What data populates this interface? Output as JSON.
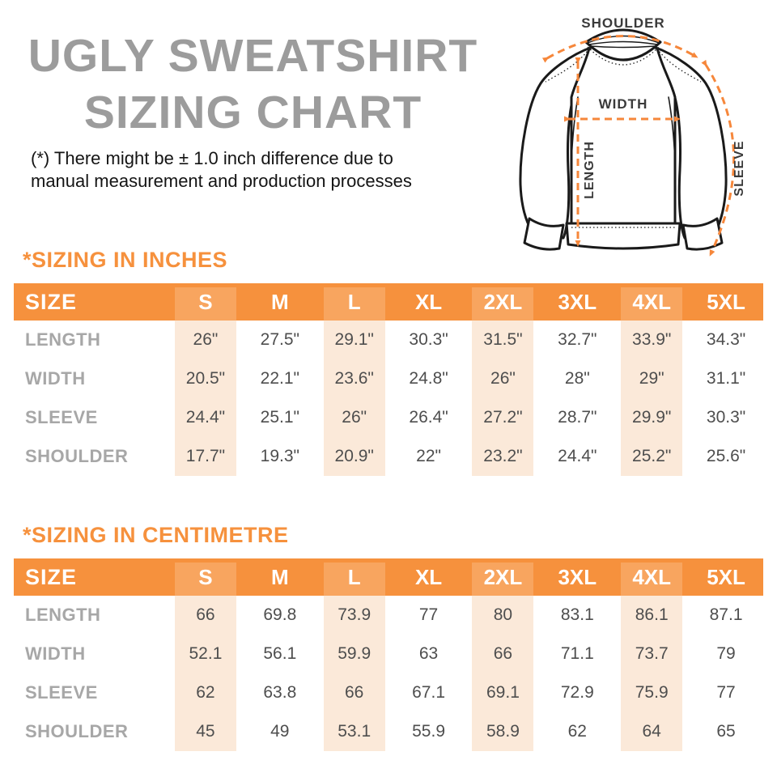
{
  "title": {
    "line1": "UGLY SWEATSHIRT",
    "line2": "SIZING CHART"
  },
  "disclaimer": {
    "line1": "(*) There might be ± 1.0 inch difference due to",
    "line2": "manual measurement and production processes"
  },
  "diagram": {
    "shoulder_label": "SHOULDER",
    "width_label": "WIDTH",
    "length_label": "LENGTH",
    "sleeve_label": "SLEEVE"
  },
  "colors": {
    "accent_orange": "#F6913D",
    "header_highlight_orange": "#F8A55F",
    "column_stripe_peach": "#FBE9D9",
    "title_gray": "#9C9C9C",
    "row_label_gray": "#A7A7A7",
    "value_gray": "#4E4E4E",
    "arrow_orange": "#F6873B"
  },
  "tables": [
    {
      "heading": "*SIZING IN INCHES",
      "size_label": "SIZE",
      "columns": [
        "S",
        "M",
        "L",
        "XL",
        "2XL",
        "3XL",
        "4XL",
        "5XL"
      ],
      "rows": [
        {
          "label": "LENGTH",
          "values": [
            "26\"",
            "27.5\"",
            "29.1\"",
            "30.3\"",
            "31.5\"",
            "32.7\"",
            "33.9\"",
            "34.3\""
          ]
        },
        {
          "label": "WIDTH",
          "values": [
            "20.5\"",
            "22.1\"",
            "23.6\"",
            "24.8\"",
            "26\"",
            "28\"",
            "29\"",
            "31.1\""
          ]
        },
        {
          "label": "SLEEVE",
          "values": [
            "24.4\"",
            "25.1\"",
            "26\"",
            "26.4\"",
            "27.2\"",
            "28.7\"",
            "29.9\"",
            "30.3\""
          ]
        },
        {
          "label": "SHOULDER",
          "values": [
            "17.7\"",
            "19.3\"",
            "20.9\"",
            "22\"",
            "23.2\"",
            "24.4\"",
            "25.2\"",
            "25.6\""
          ]
        }
      ]
    },
    {
      "heading": "*SIZING IN CENTIMETRE",
      "size_label": "SIZE",
      "columns": [
        "S",
        "M",
        "L",
        "XL",
        "2XL",
        "3XL",
        "4XL",
        "5XL"
      ],
      "rows": [
        {
          "label": "LENGTH",
          "values": [
            "66",
            "69.8",
            "73.9",
            "77",
            "80",
            "83.1",
            "86.1",
            "87.1"
          ]
        },
        {
          "label": "WIDTH",
          "values": [
            "52.1",
            "56.1",
            "59.9",
            "63",
            "66",
            "71.1",
            "73.7",
            "79"
          ]
        },
        {
          "label": "SLEEVE",
          "values": [
            "62",
            "63.8",
            "66",
            "67.1",
            "69.1",
            "72.9",
            "75.9",
            "77"
          ]
        },
        {
          "label": "SHOULDER",
          "values": [
            "45",
            "49",
            "53.1",
            "55.9",
            "58.9",
            "62",
            "64",
            "65"
          ]
        }
      ]
    }
  ]
}
